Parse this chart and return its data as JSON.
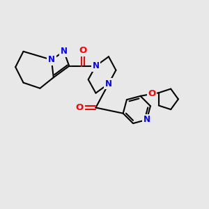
{
  "bg_color": "#e8e8e8",
  "bond_color": "#000000",
  "N_color": "#0000ff",
  "O_color": "#ff0000",
  "bond_width": 1.5,
  "figsize": [
    3.0,
    3.0
  ],
  "dpi": 100,
  "xlim": [
    0,
    10
  ],
  "ylim": [
    0,
    10
  ]
}
